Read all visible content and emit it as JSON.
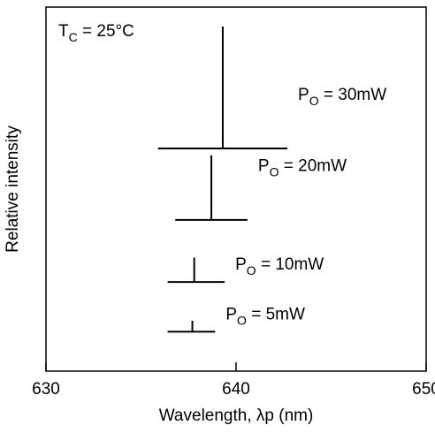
{
  "chart_data": {
    "type": "spectrum",
    "title": "",
    "xlabel": "Wavelength, λp  (nm)",
    "ylabel": "Relative intensity",
    "xlim": [
      630,
      650
    ],
    "xticks": [
      "630",
      "640",
      "650"
    ],
    "grid": false,
    "condition": {
      "prefix": "T",
      "subscript": "C",
      "suffix": " = 25°C"
    },
    "series": [
      {
        "label_prefix": "P",
        "label_sub": "O",
        "label_suffix": " = 30mW",
        "peak_wavelength": 639.3,
        "peak_relative_height": 1.0,
        "base_range": [
          635.9,
          642.7
        ],
        "offset_level": 0.64
      },
      {
        "label_prefix": "P",
        "label_sub": "O",
        "label_suffix": " = 20mW",
        "peak_wavelength": 638.7,
        "peak_relative_height": 0.53,
        "base_range": [
          636.8,
          640.6
        ],
        "offset_level": 0.41
      },
      {
        "label_prefix": "P",
        "label_sub": "O",
        "label_suffix": " = 10mW",
        "peak_wavelength": 637.8,
        "peak_relative_height": 0.2,
        "base_range": [
          636.4,
          639.4
        ],
        "offset_level": 0.21
      },
      {
        "label_prefix": "P",
        "label_sub": "O",
        "label_suffix": " = 5mW",
        "peak_wavelength": 637.7,
        "peak_relative_height": 0.09,
        "base_range": [
          636.4,
          638.9
        ],
        "offset_level": 0.05
      }
    ]
  }
}
